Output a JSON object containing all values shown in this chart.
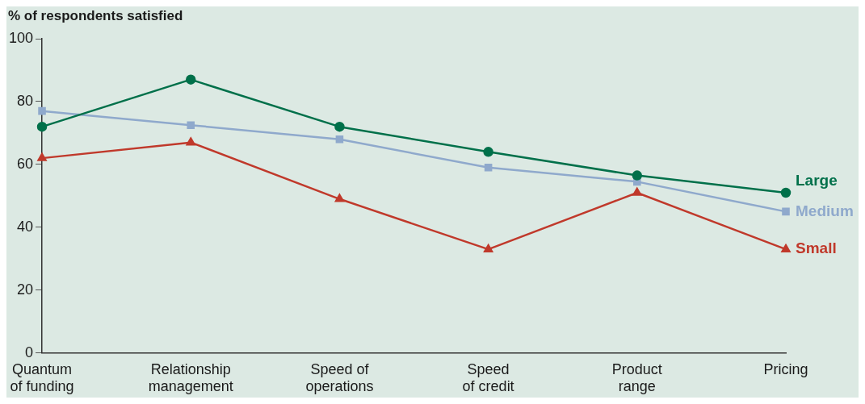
{
  "chart_data": {
    "type": "line",
    "ylabel": "% of respondents satisfied",
    "categories": [
      "Quantum\nof funding",
      "Relationship\nmanagement",
      "Speed of\noperations",
      "Speed\nof credit",
      "Product\nrange",
      "Pricing"
    ],
    "series": [
      {
        "name": "Large",
        "color": "#00704a",
        "marker": "circle",
        "values": [
          72,
          87,
          72,
          64,
          56.5,
          51
        ]
      },
      {
        "name": "Medium",
        "color": "#8fa9cc",
        "marker": "square",
        "values": [
          77,
          72.5,
          68,
          59,
          54.5,
          45
        ]
      },
      {
        "name": "Small",
        "color": "#c0392b",
        "marker": "triangle",
        "values": [
          62,
          67,
          49,
          33,
          51,
          33
        ]
      }
    ],
    "ylim": [
      0,
      100
    ],
    "yticks": [
      0,
      20,
      40,
      60,
      80,
      100
    ],
    "grid": false,
    "legend": false,
    "line_style": "solid"
  }
}
